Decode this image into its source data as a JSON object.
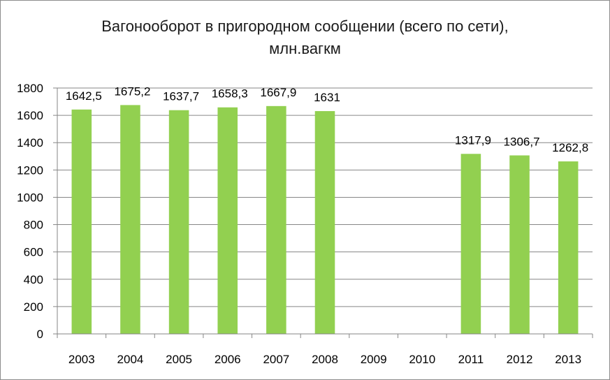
{
  "chart_data": {
    "type": "bar",
    "title": "Вагонооборот в пригородном сообщении (всего по сети), млн.вагкм",
    "xlabel": "",
    "ylabel": "",
    "categories": [
      "2003",
      "2004",
      "2005",
      "2006",
      "2007",
      "2008",
      "2009",
      "2010",
      "2011",
      "2012",
      "2013"
    ],
    "values": [
      1642.5,
      1675.2,
      1637.7,
      1658.3,
      1667.9,
      1631,
      null,
      null,
      1317.9,
      1306.7,
      1262.8
    ],
    "data_labels": [
      "1642,5",
      "1675,2",
      "1637,7",
      "1658,3",
      "1667,9",
      "1631",
      "",
      "",
      "1317,9",
      "1306,7",
      "1262,8"
    ],
    "ylim": [
      0,
      1800
    ],
    "yticks": [
      0,
      200,
      400,
      600,
      800,
      1000,
      1200,
      1400,
      1600,
      1800
    ],
    "grid": true,
    "legend": "none",
    "bar_color": "#92d050",
    "grid_color": "#868686"
  }
}
